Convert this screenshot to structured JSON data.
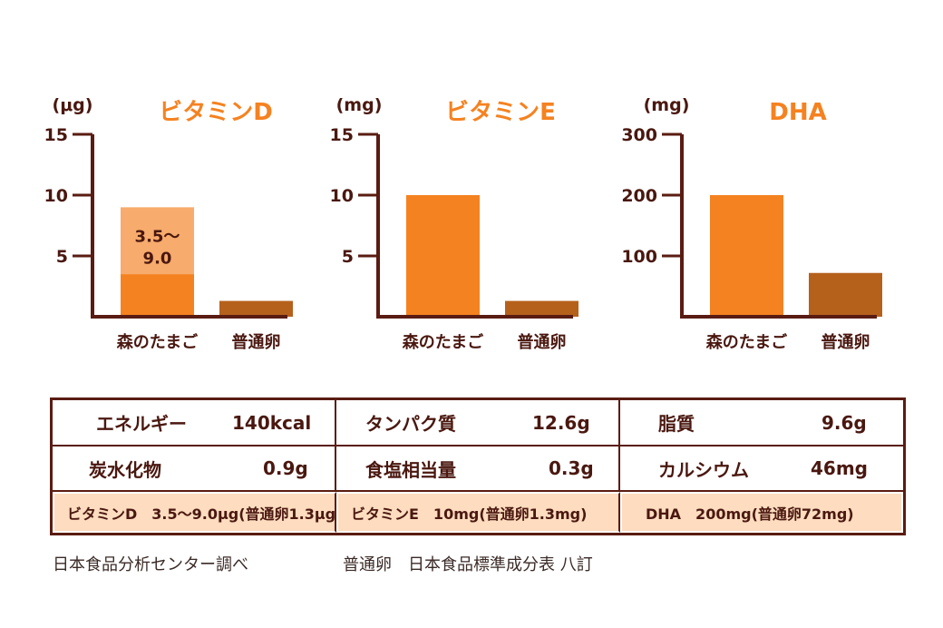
{
  "chart_data": [
    {
      "type": "bar",
      "title": "ビタミンD",
      "unit": "(μg)",
      "categories": [
        "森のたまご",
        "普通卵"
      ],
      "values": [
        3.5,
        1.3
      ],
      "range": {
        "category": "森のたまご",
        "min": 3.5,
        "max": 9.0,
        "label_line1": "3.5〜",
        "label_line2": "9.0"
      },
      "yticks": [
        "5",
        "10",
        "15"
      ],
      "ytick_values": [
        5,
        10,
        15
      ],
      "ylim": [
        0,
        15
      ],
      "grid": false
    },
    {
      "type": "bar",
      "title": "ビタミンE",
      "unit": "(mg)",
      "categories": [
        "森のたまご",
        "普通卵"
      ],
      "values": [
        10,
        1.3
      ],
      "yticks": [
        "5",
        "10",
        "15"
      ],
      "ytick_values": [
        5,
        10,
        15
      ],
      "ylim": [
        0,
        15
      ],
      "grid": false
    },
    {
      "type": "bar",
      "title": "DHA",
      "unit": "(mg)",
      "categories": [
        "森のたまご",
        "普通卵"
      ],
      "values": [
        200,
        72
      ],
      "yticks": [
        "100",
        "200",
        "300"
      ],
      "ytick_values": [
        100,
        200,
        300
      ],
      "ylim": [
        0,
        300
      ],
      "grid": false
    }
  ],
  "colors": {
    "axis": "#5a1c12",
    "text": "#4a1810",
    "title": "#f58220",
    "primary_bar": "#f58220",
    "range_bar": "#f7ab6c",
    "ordinary_bar": "#b5611c",
    "highlight_row": "#fddcbf"
  },
  "table": {
    "row0": [
      {
        "label": "エネルギー",
        "value": "140kcal"
      },
      {
        "label": "タンパク質",
        "value": "12.6g"
      },
      {
        "label": "脂質",
        "value": "9.6g"
      }
    ],
    "row1": [
      {
        "label": "炭水化物",
        "value": "0.9g"
      },
      {
        "label": "食塩相当量",
        "value": "0.3g"
      },
      {
        "label": "カルシウム",
        "value": "46mg"
      }
    ],
    "highlight": [
      "ビタミンD　3.5〜9.0μg(普通卵1.3μg)",
      "ビタミンE　10mg(普通卵1.3mg)",
      "DHA　200mg(普通卵72mg)"
    ]
  },
  "notes": {
    "left": "日本食品分析センター調べ",
    "right": "普通卵　日本食品標準成分表 八訂"
  }
}
